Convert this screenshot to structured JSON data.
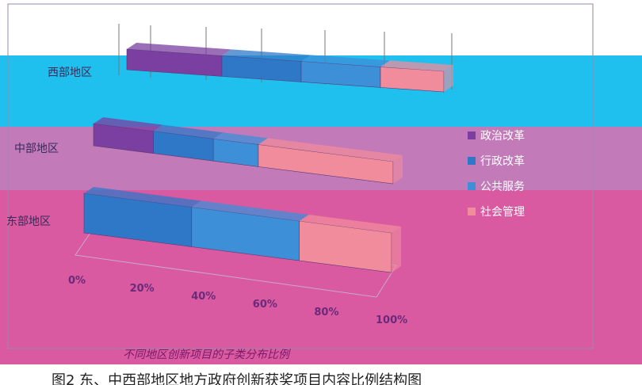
{
  "colors": {
    "band_cyan": "#1fc0ee",
    "band_purple": "#c275b8",
    "band_pink": "#dc5aa0",
    "band_pink_bottom": "#e8629f",
    "series": [
      "#7a3fa0",
      "#2f78c8",
      "#3d8fd8",
      "#f08c9c"
    ]
  },
  "chart_data": {
    "type": "bar",
    "orientation": "horizontal",
    "stacked_percent": true,
    "three_d": true,
    "categories": [
      "西部地区",
      "中部地区",
      "东部地区"
    ],
    "series": [
      {
        "name": "政治改革",
        "values": [
          0.3,
          0.2,
          0.0
        ]
      },
      {
        "name": "行政改革",
        "values": [
          0.25,
          0.2,
          0.35
        ]
      },
      {
        "name": "公共服务",
        "values": [
          0.25,
          0.15,
          0.35
        ]
      },
      {
        "name": "社会管理",
        "values": [
          0.2,
          0.45,
          0.3
        ]
      }
    ],
    "x_ticks": [
      "0%",
      "20%",
      "40%",
      "60%",
      "80%",
      "100%"
    ],
    "xlim": [
      0,
      1
    ],
    "legend_position": "right",
    "title": "不同地区创新项目的子类分布比例",
    "caption": "图2 东、中西部地区地方政府创新获奖项目内容比例结构图"
  },
  "category_labels": {
    "west": "西部地区",
    "central": "中部地区",
    "east": "东部地区"
  },
  "legend": [
    {
      "label": "政治改革",
      "icon": "square-icon"
    },
    {
      "label": "行政改革",
      "icon": "square-icon"
    },
    {
      "label": "公共服务",
      "icon": "square-icon"
    },
    {
      "label": "社会管理",
      "icon": "square-icon"
    }
  ]
}
